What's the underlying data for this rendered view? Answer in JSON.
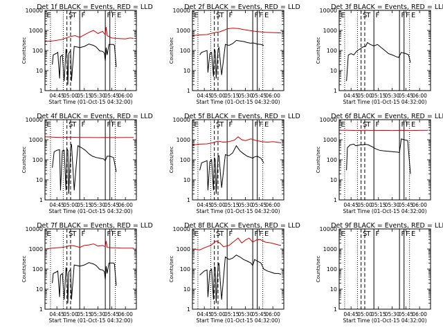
{
  "colors": {
    "events": "#000000",
    "lld": "#d40000",
    "axes": "#000000"
  },
  "time_axis": {
    "start": "04:32",
    "end": "06:12",
    "tick_labels": [
      "04:45",
      "05:00",
      "05:15",
      "05:30",
      "05:45",
      "06:00"
    ],
    "xlabel": "Start Time (01-Oct-15 04:32:00)"
  },
  "y_axis": {
    "label": "Counts/sec",
    "scale": "log",
    "range": [
      1,
      10000
    ],
    "tick_labels": [
      "1",
      "10",
      "100",
      "1000",
      "10000"
    ]
  },
  "markers": [
    {
      "time": "04:38",
      "style": "dotted",
      "label": ""
    },
    {
      "time": "04:52",
      "style": "dotted",
      "label": ""
    },
    {
      "time": "04:56",
      "style": "dashed",
      "label": ""
    },
    {
      "time": "05:00",
      "style": "dashed",
      "label": ""
    },
    {
      "time": "05:10",
      "style": "solid",
      "label": ""
    },
    {
      "time": "05:38",
      "style": "solid",
      "label": ""
    },
    {
      "time": "05:43",
      "style": "solid",
      "label": ""
    },
    {
      "time": "05:49",
      "style": "dotted",
      "label": ""
    }
  ],
  "marker_letters": [
    {
      "time": "04:33",
      "text": "E"
    },
    {
      "time": "04:57",
      "text": "S"
    },
    {
      "time": "05:01",
      "text": "T"
    },
    {
      "time": "05:11",
      "text": "F"
    },
    {
      "time": "05:39",
      "text": "F"
    },
    {
      "time": "05:44",
      "text": "F"
    },
    {
      "time": "05:50",
      "text": "E"
    }
  ],
  "chart_data": [
    {
      "type": "line",
      "title": "Det 1f BLACK = Events, RED = LLD",
      "series": [
        {
          "name": "Events",
          "color": "#000000",
          "x": [
            "04:40",
            "04:41",
            "04:44",
            "04:46",
            "04:48",
            "04:49",
            "04:51",
            "04:53",
            "04:55",
            "04:56",
            "04:57",
            "04:58",
            "05:00",
            "05:01",
            "05:04",
            "05:07",
            "05:10",
            "05:15",
            "05:20",
            "05:25",
            "05:28",
            "05:32",
            "05:35",
            "05:37",
            "05:38",
            "05:39",
            "05:40",
            "05:42",
            "05:44",
            "05:47",
            "05:48",
            "05:50"
          ],
          "y": [
            20,
            60,
            70,
            80,
            4,
            50,
            60,
            3,
            120,
            60,
            2,
            70,
            100,
            3,
            160,
            150,
            140,
            160,
            210,
            180,
            150,
            95,
            90,
            75,
            30,
            140,
            60,
            200,
            200,
            200,
            180,
            15
          ]
        },
        {
          "name": "LLD",
          "color": "#d40000",
          "x": [
            "04:32",
            "04:40",
            "04:50",
            "04:55",
            "05:00",
            "05:05",
            "05:10",
            "05:15",
            "05:20",
            "05:25",
            "05:30",
            "05:35",
            "05:38",
            "05:39",
            "05:40",
            "05:45",
            "05:50",
            "05:55",
            "06:00",
            "06:05",
            "06:09"
          ],
          "y": [
            280,
            300,
            350,
            420,
            500,
            550,
            450,
            600,
            800,
            1000,
            700,
            900,
            600,
            1500,
            550,
            420,
            400,
            390,
            380,
            420,
            400
          ]
        }
      ]
    },
    {
      "type": "line",
      "title": "Det 2f BLACK = Events, RED = LLD",
      "series": [
        {
          "name": "Events",
          "color": "#000000",
          "x": [
            "04:40",
            "04:42",
            "04:45",
            "04:48",
            "04:49",
            "04:51",
            "04:53",
            "04:55",
            "04:56",
            "04:57",
            "04:58",
            "05:00",
            "05:01",
            "05:04",
            "05:08",
            "05:12",
            "05:16",
            "05:20",
            "05:24",
            "05:28",
            "05:32",
            "05:36",
            "05:38",
            "05:40",
            "05:43",
            "05:47",
            "05:50"
          ],
          "y": [
            60,
            80,
            90,
            100,
            8,
            70,
            80,
            5,
            120,
            90,
            4,
            110,
            140,
            6,
            200,
            180,
            220,
            320,
            300,
            280,
            250,
            230,
            240,
            230,
            210,
            200,
            180
          ]
        },
        {
          "name": "LLD",
          "color": "#d40000",
          "x": [
            "04:32",
            "04:40",
            "04:48",
            "04:52",
            "04:58",
            "05:02",
            "05:06",
            "05:10",
            "05:16",
            "05:22",
            "05:28",
            "05:34",
            "05:40",
            "05:46",
            "05:52",
            "06:00",
            "06:09"
          ],
          "y": [
            550,
            600,
            620,
            700,
            800,
            850,
            1000,
            1200,
            1300,
            1250,
            1100,
            1000,
            900,
            850,
            800,
            780,
            750
          ]
        }
      ]
    },
    {
      "type": "line",
      "title": "Det 3f BLACK = Events, RED = LLD",
      "series": [
        {
          "name": "Events",
          "color": "#000000",
          "x": [
            "04:40",
            "04:42",
            "04:45",
            "04:48",
            "04:50",
            "04:52",
            "04:55",
            "04:58",
            "05:01",
            "05:03",
            "05:06",
            "05:10",
            "05:14",
            "05:18",
            "05:22",
            "05:26",
            "05:30",
            "05:34",
            "05:37",
            "05:40",
            "05:45",
            "05:48",
            "05:50"
          ],
          "y": [
            3,
            60,
            70,
            60,
            80,
            100,
            120,
            150,
            160,
            250,
            200,
            170,
            200,
            140,
            100,
            70,
            60,
            50,
            45,
            80,
            70,
            60,
            25
          ]
        }
      ]
    },
    {
      "type": "line",
      "title": "Det 4f BLACK = Events, RED = LLD",
      "series": [
        {
          "name": "Events",
          "color": "#000000",
          "x": [
            "04:40",
            "04:42",
            "04:45",
            "04:48",
            "04:49",
            "04:51",
            "04:53",
            "04:55",
            "04:56",
            "04:57",
            "04:58",
            "05:00",
            "05:01",
            "05:04",
            "05:08",
            "05:12",
            "05:16",
            "05:20",
            "05:24",
            "05:28",
            "05:32",
            "05:36",
            "05:38",
            "05:40",
            "05:43",
            "05:47",
            "05:50"
          ],
          "y": [
            40,
            250,
            300,
            320,
            3,
            280,
            300,
            3,
            350,
            300,
            2,
            400,
            600,
            3,
            500,
            400,
            300,
            200,
            150,
            130,
            120,
            110,
            90,
            150,
            150,
            130,
            25
          ]
        },
        {
          "name": "LLD",
          "color": "#d40000",
          "x": [
            "04:32",
            "04:40",
            "04:50",
            "05:00",
            "05:10",
            "05:20",
            "05:30",
            "05:40",
            "05:50",
            "06:00",
            "06:09"
          ],
          "y": [
            1400,
            1350,
            1300,
            1350,
            1300,
            1300,
            1280,
            1300,
            1280,
            1290,
            1300
          ]
        }
      ]
    },
    {
      "type": "line",
      "title": "Det 5f BLACK = Events, RED = LLD",
      "series": [
        {
          "name": "Events",
          "color": "#000000",
          "x": [
            "04:40",
            "04:42",
            "04:45",
            "04:48",
            "04:49",
            "04:51",
            "04:53",
            "04:55",
            "04:56",
            "04:57",
            "04:58",
            "05:00",
            "05:01",
            "05:04",
            "05:08",
            "05:12",
            "05:16",
            "05:20",
            "05:24",
            "05:28",
            "05:32",
            "05:36",
            "05:38",
            "05:40",
            "05:43",
            "05:47",
            "05:50"
          ],
          "y": [
            30,
            70,
            80,
            90,
            3,
            80,
            100,
            3,
            130,
            100,
            2,
            150,
            160,
            4,
            180,
            160,
            220,
            500,
            280,
            200,
            150,
            130,
            120,
            140,
            150,
            120,
            70
          ]
        },
        {
          "name": "LLD",
          "color": "#d40000",
          "x": [
            "04:32",
            "04:40",
            "04:48",
            "04:54",
            "05:00",
            "05:06",
            "05:12",
            "05:18",
            "05:22",
            "05:26",
            "05:30",
            "05:36",
            "05:42",
            "05:48",
            "05:54",
            "06:00",
            "06:09"
          ],
          "y": [
            550,
            600,
            620,
            700,
            850,
            750,
            800,
            950,
            1400,
            1000,
            900,
            1100,
            900,
            800,
            750,
            800,
            700
          ]
        }
      ]
    },
    {
      "type": "line",
      "title": "Det 6f BLACK = Events, RED = LLD",
      "series": [
        {
          "name": "Events",
          "color": "#000000",
          "x": [
            "04:40",
            "04:41",
            "04:44",
            "04:48",
            "04:50",
            "04:52",
            "04:55",
            "04:58",
            "05:00",
            "05:04",
            "05:08",
            "05:12",
            "05:16",
            "05:20",
            "05:24",
            "05:28",
            "05:32",
            "05:36",
            "05:38",
            "05:40",
            "05:43",
            "05:47",
            "05:50"
          ],
          "y": [
            30,
            400,
            550,
            600,
            500,
            520,
            550,
            550,
            600,
            550,
            450,
            350,
            300,
            280,
            270,
            260,
            250,
            240,
            230,
            1100,
            1000,
            900,
            20
          ]
        },
        {
          "name": "LLD",
          "color": "#d40000",
          "x": [
            "04:32",
            "04:40",
            "04:50",
            "05:00",
            "05:10",
            "05:20",
            "05:30",
            "05:40",
            "05:50",
            "06:00",
            "06:09"
          ],
          "y": [
            3000,
            3000,
            2900,
            3000,
            2900,
            2950,
            2900,
            2950,
            2900,
            2950,
            2950
          ]
        }
      ]
    },
    {
      "type": "line",
      "title": "Det 7f BLACK = Events, RED = LLD",
      "series": [
        {
          "name": "Events",
          "color": "#000000",
          "x": [
            "04:40",
            "04:41",
            "04:44",
            "04:46",
            "04:48",
            "04:49",
            "04:51",
            "04:53",
            "04:55",
            "04:56",
            "04:57",
            "04:58",
            "05:00",
            "05:01",
            "05:04",
            "05:07",
            "05:10",
            "05:15",
            "05:20",
            "05:25",
            "05:28",
            "05:32",
            "05:35",
            "05:37",
            "05:38",
            "05:39",
            "05:40",
            "05:42",
            "05:44",
            "05:47",
            "05:48",
            "05:50"
          ],
          "y": [
            20,
            60,
            70,
            80,
            4,
            50,
            60,
            3,
            120,
            60,
            2,
            70,
            100,
            3,
            160,
            150,
            140,
            160,
            210,
            180,
            150,
            95,
            90,
            75,
            30,
            140,
            60,
            200,
            200,
            200,
            180,
            15
          ]
        },
        {
          "name": "LLD",
          "color": "#d40000",
          "x": [
            "04:32",
            "04:40",
            "04:50",
            "04:55",
            "05:00",
            "05:05",
            "05:10",
            "05:15",
            "05:20",
            "05:25",
            "05:30",
            "05:35",
            "05:38",
            "05:39",
            "05:40",
            "05:45",
            "05:50",
            "05:55",
            "06:00",
            "06:05",
            "06:09"
          ],
          "y": [
            1000,
            1100,
            1200,
            1300,
            1500,
            1400,
            1200,
            1500,
            1600,
            1800,
            1400,
            1500,
            1300,
            2500,
            1200,
            1150,
            1150,
            1100,
            1100,
            1100,
            1100
          ]
        }
      ]
    },
    {
      "type": "line",
      "title": "Det 8f BLACK = Events, RED = LLD",
      "series": [
        {
          "name": "Events",
          "color": "#000000",
          "x": [
            "04:40",
            "04:42",
            "04:45",
            "04:48",
            "04:49",
            "04:51",
            "04:53",
            "04:55",
            "04:56",
            "04:57",
            "04:58",
            "05:00",
            "05:01",
            "05:04",
            "05:08",
            "05:12",
            "05:16",
            "05:20",
            "05:24",
            "05:28",
            "05:32",
            "05:36",
            "05:38",
            "05:40",
            "05:43",
            "05:47",
            "05:50",
            "05:54",
            "05:58",
            "06:02",
            "06:06",
            "06:09"
          ],
          "y": [
            50,
            60,
            80,
            90,
            4,
            80,
            100,
            3,
            130,
            120,
            2,
            150,
            200,
            3,
            400,
            300,
            350,
            500,
            400,
            300,
            250,
            200,
            150,
            300,
            250,
            200,
            100,
            80,
            70,
            60,
            60,
            55
          ]
        },
        {
          "name": "LLD",
          "color": "#d40000",
          "x": [
            "04:32",
            "04:40",
            "04:46",
            "04:52",
            "04:58",
            "05:02",
            "05:06",
            "05:12",
            "05:18",
            "05:22",
            "05:26",
            "05:30",
            "05:34",
            "05:38",
            "05:42",
            "05:46",
            "05:52",
            "05:58",
            "06:02",
            "06:06",
            "06:09"
          ],
          "y": [
            1000,
            900,
            1200,
            1500,
            2500,
            2000,
            1300,
            1500,
            2500,
            3500,
            2000,
            2800,
            3500,
            2200,
            2800,
            3000,
            2200,
            2000,
            1800,
            1600,
            1500
          ]
        }
      ]
    },
    {
      "type": "line",
      "title": "Det 9f BLACK = Events, RED = LLD",
      "series": []
    }
  ]
}
